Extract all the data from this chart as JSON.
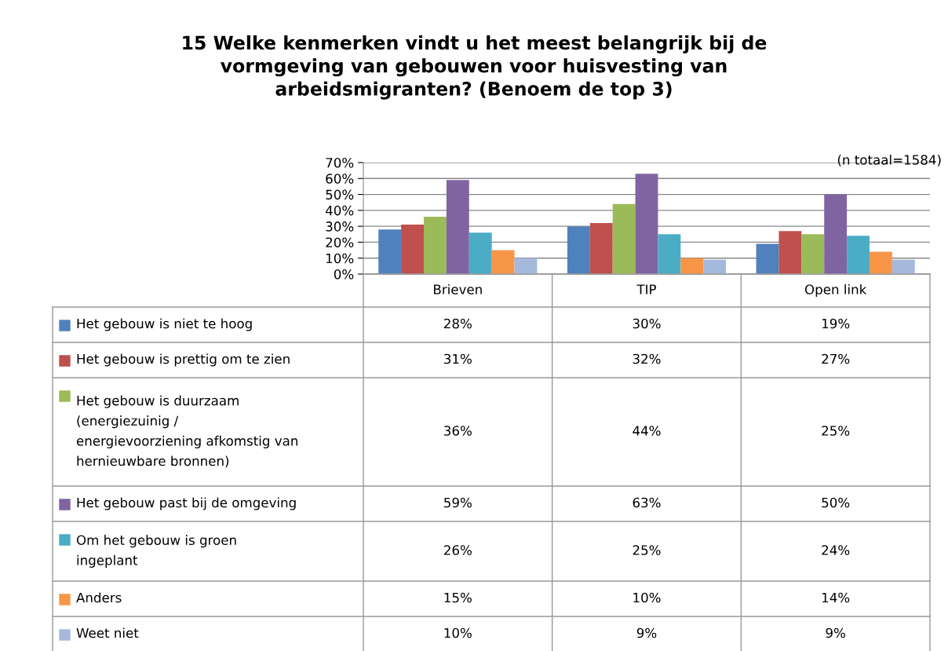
{
  "chart_data": {
    "type": "bar",
    "title": "15 Welke kenmerken vindt u het meest belangrijk bij de\nvormgeving van gebouwen voor huisvesting van\narbeidsmigranten? (Benoem de top 3)",
    "annotations": [
      "(n totaal=1584)"
    ],
    "categories": [
      "Brieven",
      "TIP",
      "Open link"
    ],
    "series": [
      {
        "name": "Het gebouw is niet te hoog",
        "color": "#4f81bd",
        "values": [
          28,
          30,
          19
        ],
        "value_labels": [
          "28%",
          "30%",
          "19%"
        ]
      },
      {
        "name": "Het gebouw is prettig om te zien",
        "color": "#c0504d",
        "values": [
          31,
          32,
          27
        ],
        "value_labels": [
          "31%",
          "32%",
          "27%"
        ]
      },
      {
        "name": "Het gebouw is duurzaam\n(energiezuinig /\nenergievoorziening afkomstig van\nhernieuwbare bronnen)",
        "color": "#9bbb59",
        "values": [
          36,
          44,
          25
        ],
        "value_labels": [
          "36%",
          "44%",
          "25%"
        ]
      },
      {
        "name": "Het gebouw past bij de omgeving",
        "color": "#8064a2",
        "values": [
          59,
          63,
          50
        ],
        "value_labels": [
          "59%",
          "63%",
          "50%"
        ]
      },
      {
        "name": "Om het gebouw is groen\ningeplant",
        "color": "#4bacc6",
        "values": [
          26,
          25,
          24
        ],
        "value_labels": [
          "26%",
          "25%",
          "24%"
        ]
      },
      {
        "name": "Anders",
        "color": "#f79646",
        "values": [
          15,
          10,
          14
        ],
        "value_labels": [
          "15%",
          "10%",
          "14%"
        ]
      },
      {
        "name": "Weet niet",
        "color": "#a5b9dd",
        "values": [
          10,
          9,
          9
        ],
        "value_labels": [
          "10%",
          "9%",
          "9%"
        ]
      }
    ],
    "ylim": [
      0,
      70
    ],
    "yticks": [
      {
        "value": 0,
        "label": "0%"
      },
      {
        "value": 10,
        "label": "10%"
      },
      {
        "value": 20,
        "label": "20%"
      },
      {
        "value": 30,
        "label": "30%"
      },
      {
        "value": 40,
        "label": "40%"
      },
      {
        "value": 50,
        "label": "50%"
      },
      {
        "value": 60,
        "label": "60%"
      },
      {
        "value": 70,
        "label": "70%"
      }
    ],
    "grid": "y",
    "legend": "left"
  }
}
